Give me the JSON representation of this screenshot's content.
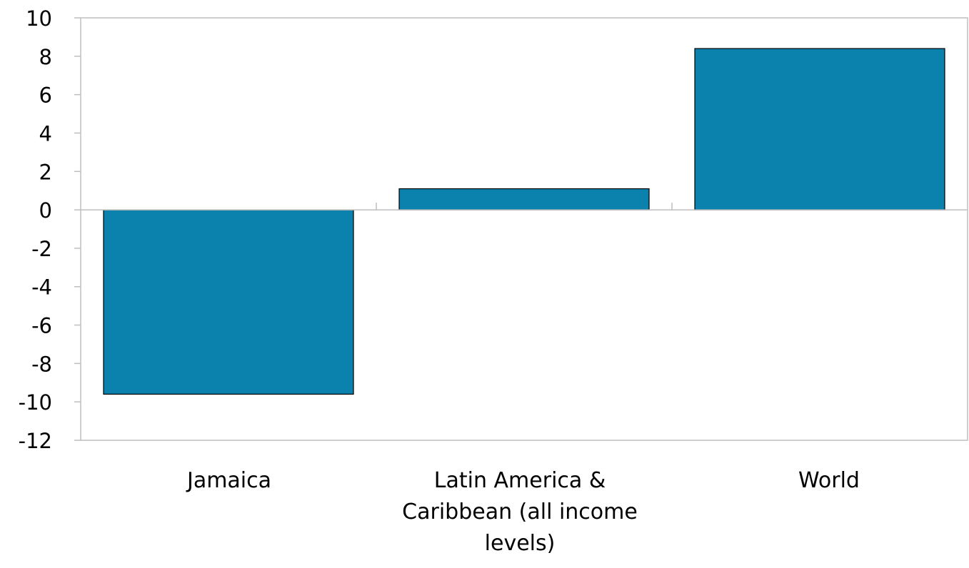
{
  "chart_data": {
    "type": "bar",
    "title": "",
    "xlabel": "",
    "ylabel": "",
    "categories": [
      "Jamaica",
      "Latin America & Caribbean (all income levels)",
      "World"
    ],
    "values": [
      -9.6,
      1.1,
      8.4
    ],
    "ylim": [
      -12,
      10
    ],
    "yticks": [
      10,
      8,
      6,
      4,
      2,
      0,
      -2,
      -4,
      -6,
      -8,
      -10,
      -12
    ],
    "grid": false,
    "legend": "none",
    "colors": {
      "bar": "#0b82ae",
      "bar_outline": "#000000",
      "frame": "#bfbfbf",
      "text": "#000000"
    }
  }
}
